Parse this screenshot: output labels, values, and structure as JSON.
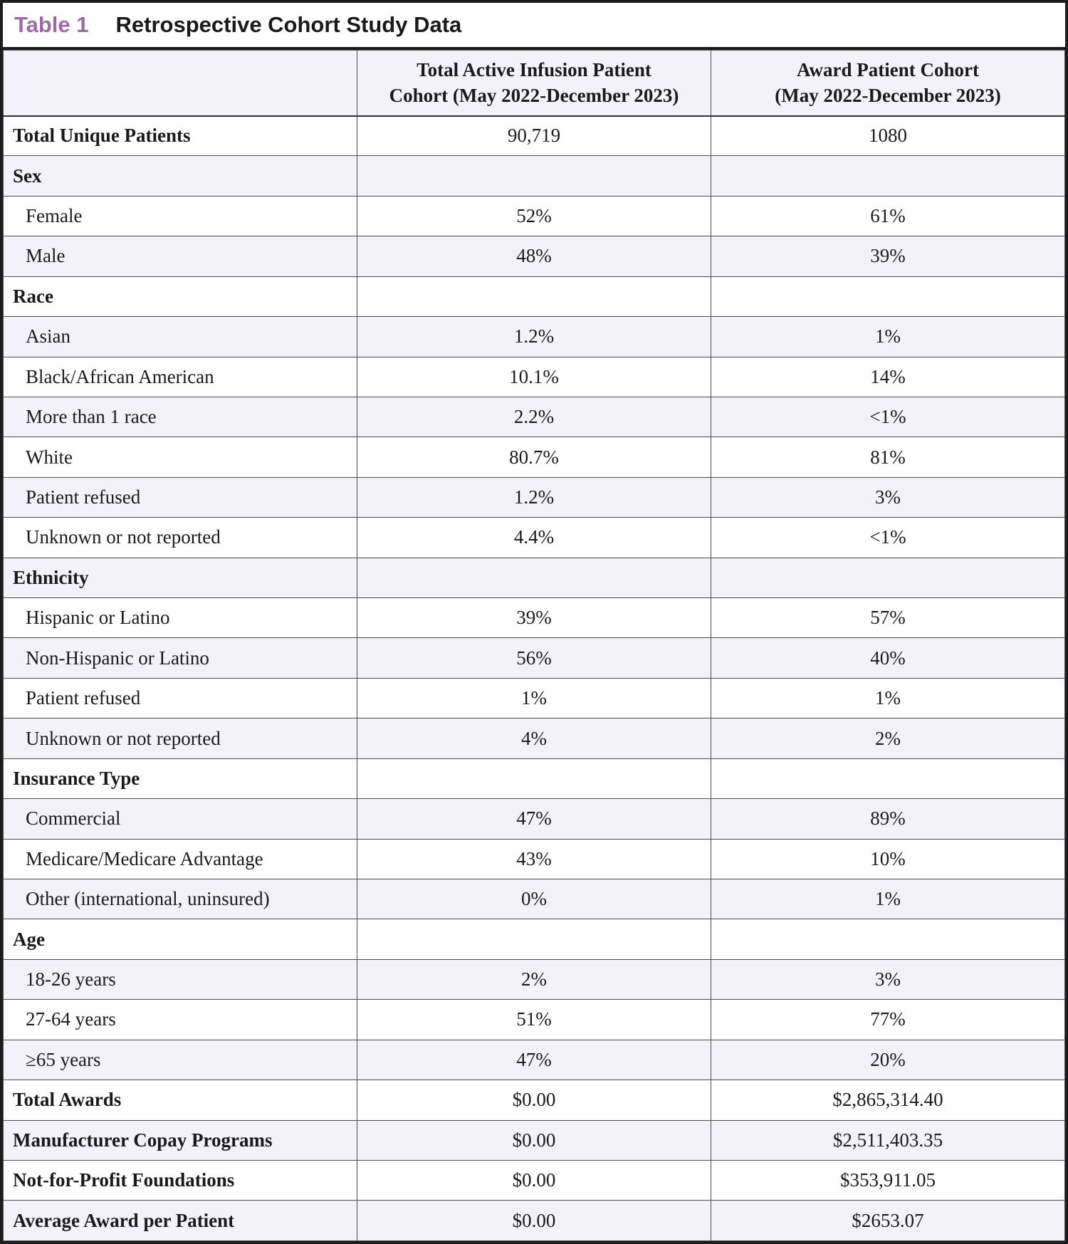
{
  "title": {
    "tag": "Table 1",
    "text": "Retrospective Cohort Study Data"
  },
  "header": {
    "label_col": "",
    "col2": "Total Active Infusion Patient\nCohort (May 2022-December 2023)",
    "col3": "Award Patient Cohort\n(May 2022-December 2023)"
  },
  "rows": [
    {
      "label": "Total Unique Patients",
      "c1": "90,719",
      "c2": "1080",
      "type": "total"
    },
    {
      "label": "Sex",
      "c1": "",
      "c2": "",
      "type": "section"
    },
    {
      "label": "Female",
      "c1": "52%",
      "c2": "61%",
      "type": "item"
    },
    {
      "label": "Male",
      "c1": "48%",
      "c2": "39%",
      "type": "item"
    },
    {
      "label": "Race",
      "c1": "",
      "c2": "",
      "type": "section"
    },
    {
      "label": "Asian",
      "c1": "1.2%",
      "c2": "1%",
      "type": "item"
    },
    {
      "label": "Black/African American",
      "c1": "10.1%",
      "c2": "14%",
      "type": "item"
    },
    {
      "label": "More than 1 race",
      "c1": "2.2%",
      "c2": "<1%",
      "type": "item"
    },
    {
      "label": "White",
      "c1": "80.7%",
      "c2": "81%",
      "type": "item"
    },
    {
      "label": "Patient refused",
      "c1": "1.2%",
      "c2": "3%",
      "type": "item"
    },
    {
      "label": "Unknown or not reported",
      "c1": "4.4%",
      "c2": "<1%",
      "type": "item"
    },
    {
      "label": "Ethnicity",
      "c1": "",
      "c2": "",
      "type": "section"
    },
    {
      "label": "Hispanic or Latino",
      "c1": "39%",
      "c2": "57%",
      "type": "item"
    },
    {
      "label": "Non-Hispanic or Latino",
      "c1": "56%",
      "c2": "40%",
      "type": "item"
    },
    {
      "label": "Patient refused",
      "c1": "1%",
      "c2": "1%",
      "type": "item"
    },
    {
      "label": "Unknown or not reported",
      "c1": "4%",
      "c2": "2%",
      "type": "item"
    },
    {
      "label": "Insurance Type",
      "c1": "",
      "c2": "",
      "type": "section"
    },
    {
      "label": "Commercial",
      "c1": "47%",
      "c2": "89%",
      "type": "item"
    },
    {
      "label": "Medicare/Medicare Advantage",
      "c1": "43%",
      "c2": "10%",
      "type": "item"
    },
    {
      "label": "Other (international, uninsured)",
      "c1": "0%",
      "c2": "1%",
      "type": "item"
    },
    {
      "label": "Age",
      "c1": "",
      "c2": "",
      "type": "section"
    },
    {
      "label": "18-26 years",
      "c1": "2%",
      "c2": "3%",
      "type": "item"
    },
    {
      "label": "27-64 years",
      "c1": "51%",
      "c2": "77%",
      "type": "item"
    },
    {
      "label": "≥65 years",
      "c1": "47%",
      "c2": "20%",
      "type": "item"
    },
    {
      "label": "Total Awards",
      "c1": "$0.00",
      "c2": "$2,865,314.40",
      "type": "total"
    },
    {
      "label": "Manufacturer Copay Programs",
      "c1": "$0.00",
      "c2": "$2,511,403.35",
      "type": "total"
    },
    {
      "label": "Not-for-Profit Foundations",
      "c1": "$0.00",
      "c2": "$353,911.05",
      "type": "total"
    },
    {
      "label": "Average Award per Patient",
      "c1": "$0.00",
      "c2": "$2653.07",
      "type": "total"
    }
  ],
  "colors": {
    "accent_purple": "#9d6aa5",
    "row_shade": "#f3f2f8",
    "inner_border": "#4d4d4d",
    "outer_border": "#1c1c1c",
    "text_ink": "#1a1a1a"
  }
}
